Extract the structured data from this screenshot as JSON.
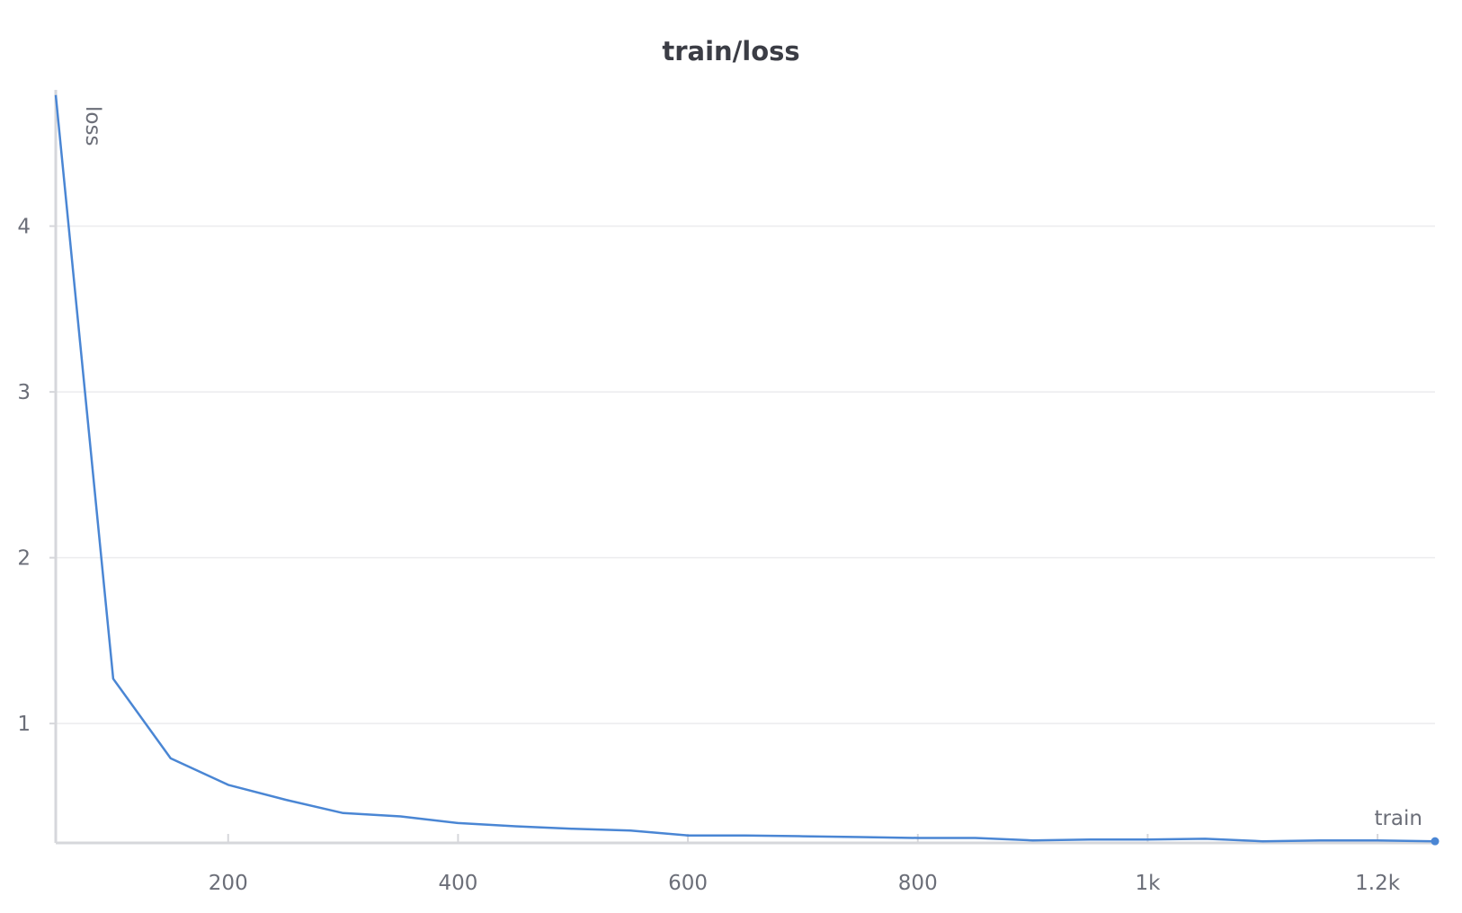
{
  "chart_data": {
    "type": "line",
    "title": "train/loss",
    "ylabel": "loss",
    "xlim": [
      50,
      1250
    ],
    "ylim": [
      0.28,
      4.8
    ],
    "grid": true,
    "x_ticks": [
      200,
      400,
      600,
      800,
      1000,
      1200
    ],
    "x_tick_labels": [
      "200",
      "400",
      "600",
      "800",
      "1k",
      "1.2k"
    ],
    "y_ticks": [
      1,
      2,
      3,
      4
    ],
    "y_tick_labels": [
      "1",
      "2",
      "3",
      "4"
    ],
    "series": [
      {
        "name": "train",
        "color": "#4a86d4",
        "x": [
          50,
          100,
          150,
          200,
          250,
          300,
          350,
          400,
          450,
          500,
          550,
          600,
          650,
          700,
          750,
          800,
          850,
          900,
          950,
          1000,
          1050,
          1100,
          1150,
          1200,
          1250
        ],
        "y": [
          4.79,
          1.27,
          0.79,
          0.63,
          0.54,
          0.46,
          0.44,
          0.4,
          0.38,
          0.365,
          0.355,
          0.325,
          0.325,
          0.32,
          0.315,
          0.31,
          0.31,
          0.295,
          0.3,
          0.3,
          0.305,
          0.29,
          0.295,
          0.295,
          0.29
        ]
      }
    ]
  }
}
